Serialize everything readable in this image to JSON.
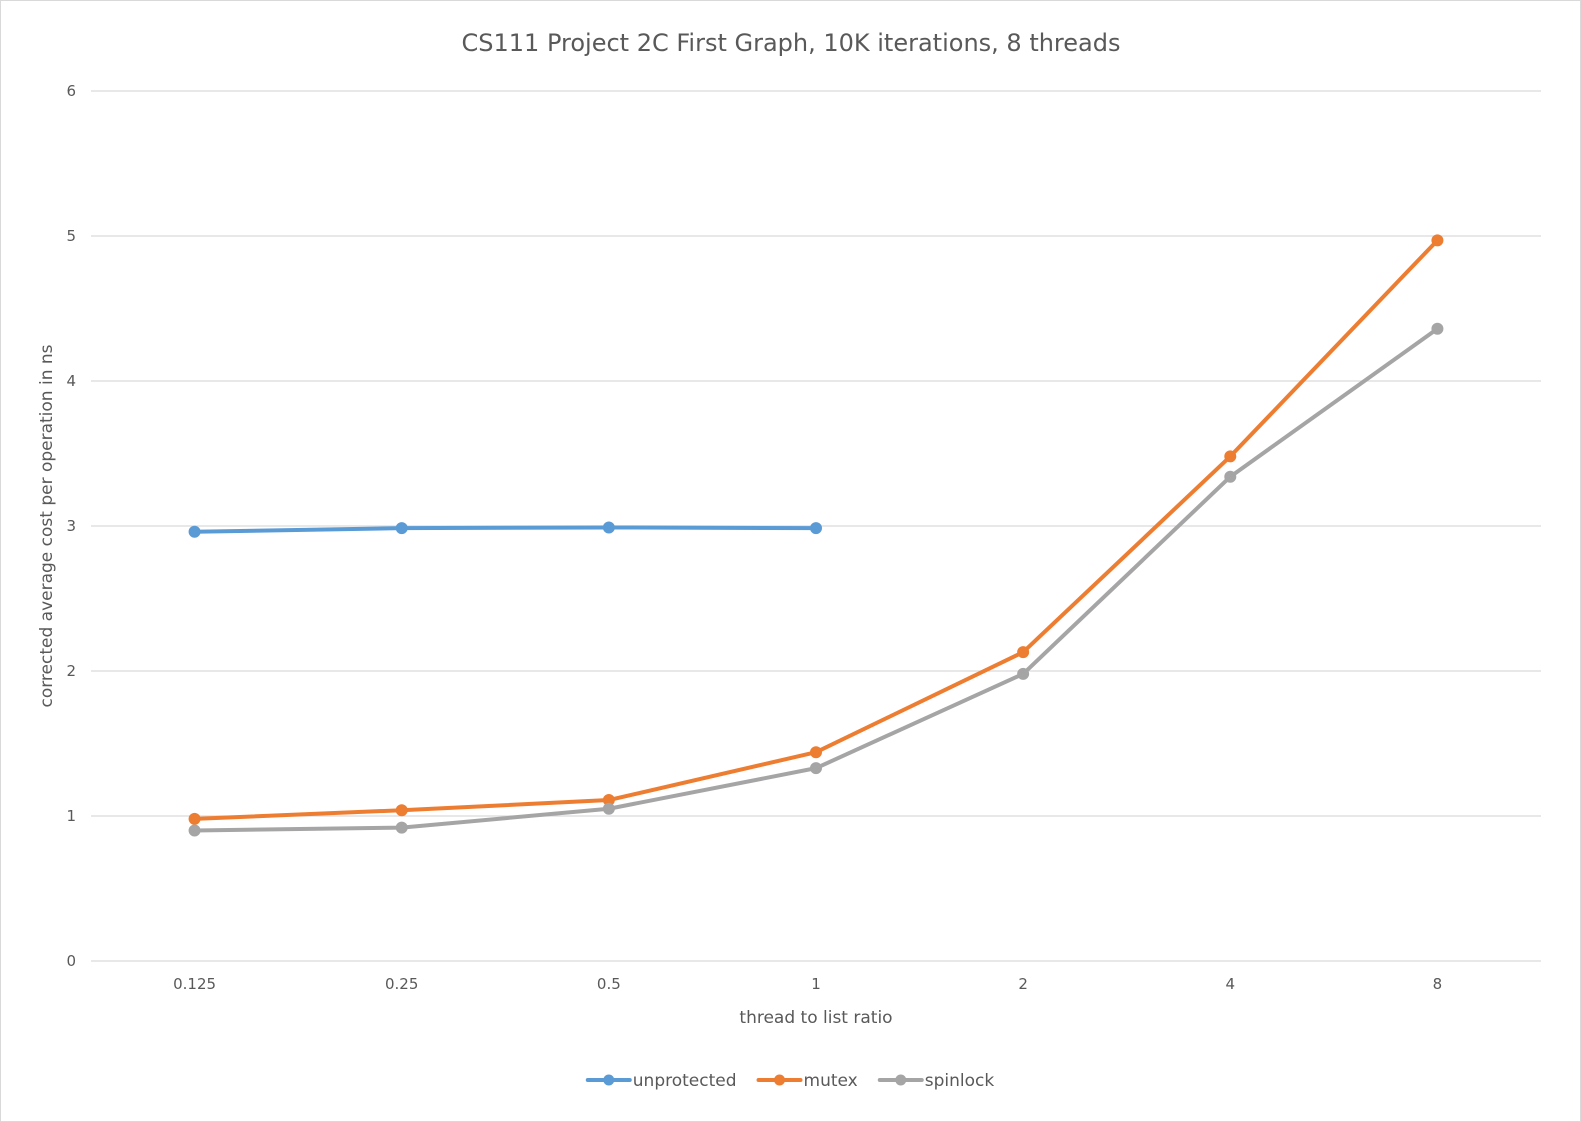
{
  "chart_data": {
    "type": "line",
    "title": "CS111 Project 2C First Graph, 10K iterations, 8 threads",
    "xlabel": "thread to list ratio",
    "ylabel": "corrected average cost per operation in ns",
    "categories": [
      "0.125",
      "0.25",
      "0.5",
      "1",
      "2",
      "4",
      "8"
    ],
    "ylim": [
      0,
      6
    ],
    "yticks": [
      "0",
      "1",
      "2",
      "3",
      "4",
      "5",
      "6"
    ],
    "grid": true,
    "legend_position": "bottom",
    "series": [
      {
        "name": "unprotected",
        "color": "#5b9bd5",
        "values": [
          2.96,
          2.985,
          2.99,
          2.985,
          null,
          null,
          null
        ]
      },
      {
        "name": "mutex",
        "color": "#ed7d31",
        "values": [
          0.98,
          1.04,
          1.11,
          1.44,
          2.13,
          3.48,
          4.97
        ]
      },
      {
        "name": "spinlock",
        "color": "#a5a5a5",
        "values": [
          0.9,
          0.92,
          1.05,
          1.33,
          1.98,
          3.34,
          4.36
        ]
      }
    ]
  }
}
